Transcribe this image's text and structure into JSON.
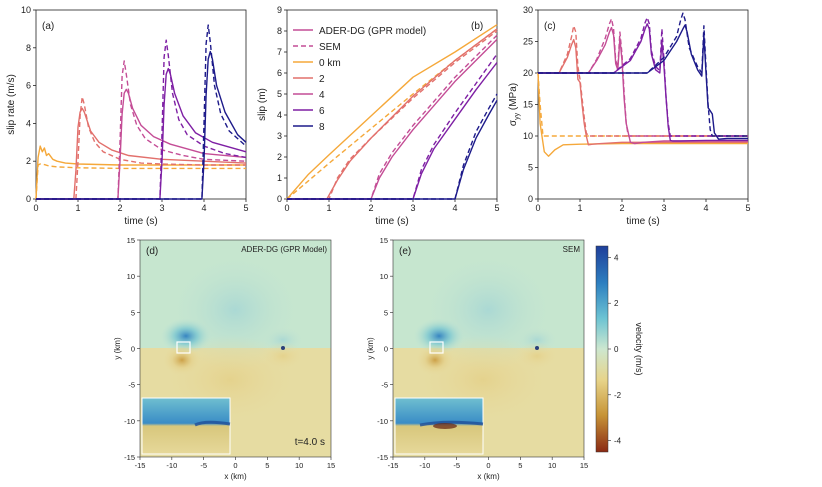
{
  "colors": {
    "0": "#f5a83a",
    "2": "#e2706c",
    "4": "#c44d96",
    "6": "#7e1fa4",
    "8": "#1d1a8a",
    "dg_pos": "#2d6fb3",
    "dg_neg": "#8b3a1c"
  },
  "chart_data": [
    {
      "id": "a",
      "type": "line",
      "panel_label": "(a)",
      "xlabel": "time (s)",
      "ylabel": "slip rate (m/s)",
      "xlim": [
        0,
        5
      ],
      "ylim": [
        0,
        10
      ],
      "xticks": [
        0,
        1,
        2,
        3,
        4,
        5
      ],
      "yticks": [
        0,
        2,
        4,
        6,
        8,
        10
      ],
      "series": [
        {
          "name": "0 km ADER-DG",
          "key": "0",
          "dash": false,
          "x": [
            0,
            0.05,
            0.1,
            0.15,
            0.2,
            0.25,
            0.3,
            0.4,
            0.5,
            0.7,
            1.0,
            2.0,
            3.0,
            4.0,
            5.0
          ],
          "y": [
            0,
            2.2,
            2.8,
            2.5,
            2.7,
            2.3,
            2.4,
            2.1,
            2.0,
            1.9,
            1.85,
            1.8,
            1.8,
            1.8,
            1.8
          ]
        },
        {
          "name": "0 km SEM",
          "key": "0",
          "dash": true,
          "x": [
            0,
            0.05,
            0.1,
            0.2,
            0.3,
            0.5,
            1.0,
            2.0,
            3.0,
            4.0,
            5.0
          ],
          "y": [
            0,
            1.8,
            1.85,
            1.82,
            1.75,
            1.7,
            1.65,
            1.62,
            1.62,
            1.62,
            1.62
          ]
        },
        {
          "name": "2 km ADER-DG",
          "key": "2",
          "dash": false,
          "x": [
            0,
            0.9,
            0.95,
            1.0,
            1.05,
            1.1,
            1.15,
            1.3,
            1.5,
            1.8,
            2.2,
            3.0,
            4.0,
            5.0
          ],
          "y": [
            0,
            0,
            1.5,
            3.8,
            4.6,
            4.8,
            4.6,
            3.6,
            3.0,
            2.6,
            2.3,
            2.1,
            2.0,
            1.9
          ]
        },
        {
          "name": "2 km SEM",
          "key": "2",
          "dash": true,
          "x": [
            0,
            0.95,
            1.0,
            1.05,
            1.1,
            1.15,
            1.25,
            1.4,
            1.6,
            2.0,
            2.5,
            3.0,
            4.0,
            5.0
          ],
          "y": [
            0,
            0,
            2.0,
            4.4,
            5.4,
            5.0,
            3.8,
            3.0,
            2.5,
            2.1,
            1.9,
            1.85,
            1.8,
            1.8
          ]
        },
        {
          "name": "4 km ADER-DG",
          "key": "4",
          "dash": false,
          "x": [
            0,
            1.95,
            2.0,
            2.05,
            2.1,
            2.15,
            2.2,
            2.3,
            2.5,
            2.8,
            3.2,
            4.0,
            5.0
          ],
          "y": [
            0,
            0,
            2.0,
            4.5,
            5.6,
            5.8,
            5.6,
            4.8,
            3.9,
            3.3,
            2.9,
            2.4,
            2.2
          ]
        },
        {
          "name": "4 km SEM",
          "key": "4",
          "dash": true,
          "x": [
            0,
            1.95,
            2.0,
            2.05,
            2.1,
            2.15,
            2.25,
            2.4,
            2.6,
            3.0,
            3.5,
            4.0,
            5.0
          ],
          "y": [
            0,
            0,
            3.0,
            6.5,
            7.3,
            6.6,
            5.0,
            3.9,
            3.2,
            2.6,
            2.3,
            2.1,
            2.0
          ]
        },
        {
          "name": "6 km ADER-DG",
          "key": "6",
          "dash": false,
          "x": [
            0,
            2.95,
            3.0,
            3.05,
            3.1,
            3.15,
            3.2,
            3.3,
            3.5,
            3.8,
            4.2,
            5.0
          ],
          "y": [
            0,
            0,
            2.0,
            5.0,
            6.6,
            6.9,
            6.6,
            5.6,
            4.4,
            3.5,
            3.0,
            2.5
          ]
        },
        {
          "name": "6 km SEM",
          "key": "6",
          "dash": true,
          "x": [
            0,
            2.95,
            3.0,
            3.05,
            3.1,
            3.15,
            3.25,
            3.4,
            3.6,
            4.0,
            4.5,
            5.0
          ],
          "y": [
            0,
            0,
            3.5,
            7.5,
            8.4,
            7.6,
            5.6,
            4.2,
            3.4,
            2.8,
            2.4,
            2.2
          ]
        },
        {
          "name": "8 km ADER-DG",
          "key": "8",
          "dash": false,
          "x": [
            0,
            3.95,
            4.0,
            4.05,
            4.1,
            4.15,
            4.2,
            4.3,
            4.5,
            4.8,
            5.0
          ],
          "y": [
            0,
            0,
            2.0,
            5.5,
            7.4,
            7.8,
            7.4,
            6.0,
            4.6,
            3.4,
            3.0
          ]
        },
        {
          "name": "8 km SEM",
          "key": "8",
          "dash": true,
          "x": [
            0,
            3.95,
            4.0,
            4.05,
            4.1,
            4.15,
            4.25,
            4.4,
            4.6,
            5.0
          ],
          "y": [
            0,
            0,
            4.0,
            8.2,
            9.2,
            8.3,
            6.0,
            4.5,
            3.6,
            2.8
          ]
        }
      ]
    },
    {
      "id": "b",
      "type": "line",
      "panel_label": "(b)",
      "xlabel": "time (s)",
      "ylabel": "slip (m)",
      "xlim": [
        0,
        5
      ],
      "ylim": [
        0,
        9
      ],
      "xticks": [
        0,
        1,
        2,
        3,
        4,
        5
      ],
      "yticks": [
        0,
        1,
        2,
        3,
        4,
        5,
        6,
        7,
        8,
        9
      ],
      "legend": [
        {
          "label": "ADER-DG (GPR model)",
          "key": "4",
          "dash": false
        },
        {
          "label": "SEM",
          "key": "4",
          "dash": true
        },
        {
          "label": "0 km",
          "key": "0",
          "dash": false
        },
        {
          "label": "2",
          "key": "2",
          "dash": false
        },
        {
          "label": "4",
          "key": "4",
          "dash": false
        },
        {
          "label": "6",
          "key": "6",
          "dash": false
        },
        {
          "label": "8",
          "key": "8",
          "dash": false
        }
      ],
      "series": [
        {
          "name": "0 km ADER-DG",
          "key": "0",
          "dash": false,
          "x": [
            0,
            0.5,
            1,
            2,
            3,
            4,
            5
          ],
          "y": [
            0,
            1.15,
            2.1,
            3.95,
            5.8,
            7.0,
            8.3
          ]
        },
        {
          "name": "0 km SEM",
          "key": "0",
          "dash": true,
          "x": [
            0,
            0.5,
            1,
            2,
            3,
            4,
            5
          ],
          "y": [
            0,
            0.85,
            1.7,
            3.35,
            5.0,
            6.6,
            8.1
          ]
        },
        {
          "name": "2 km ADER-DG",
          "key": "2",
          "dash": false,
          "x": [
            0,
            0.95,
            1.2,
            1.5,
            2,
            3,
            4,
            5
          ],
          "y": [
            0,
            0,
            0.9,
            1.8,
            2.9,
            4.9,
            6.6,
            8.1
          ]
        },
        {
          "name": "2 km SEM",
          "key": "2",
          "dash": true,
          "x": [
            0,
            1.0,
            1.2,
            1.5,
            2,
            3,
            4,
            5
          ],
          "y": [
            0,
            0,
            1.0,
            1.9,
            2.9,
            4.8,
            6.5,
            8.0
          ]
        },
        {
          "name": "4 km ADER-DG",
          "key": "4",
          "dash": false,
          "x": [
            0,
            2.0,
            2.2,
            2.5,
            3,
            4,
            5
          ],
          "y": [
            0,
            0,
            1.0,
            2.0,
            3.3,
            5.6,
            7.6
          ]
        },
        {
          "name": "4 km SEM",
          "key": "4",
          "dash": true,
          "x": [
            0,
            2.0,
            2.2,
            2.5,
            3,
            4,
            5
          ],
          "y": [
            0,
            0,
            1.2,
            2.2,
            3.5,
            5.8,
            7.8
          ]
        },
        {
          "name": "6 km ADER-DG",
          "key": "6",
          "dash": false,
          "x": [
            0,
            3.0,
            3.2,
            3.5,
            4,
            4.5,
            5
          ],
          "y": [
            0,
            0,
            1.2,
            2.4,
            3.8,
            5.2,
            6.5
          ]
        },
        {
          "name": "6 km SEM",
          "key": "6",
          "dash": true,
          "x": [
            0,
            3.0,
            3.2,
            3.5,
            4,
            4.5,
            5
          ],
          "y": [
            0,
            0,
            1.4,
            2.6,
            4.1,
            5.5,
            6.9
          ]
        },
        {
          "name": "8 km ADER-DG",
          "key": "8",
          "dash": false,
          "x": [
            0,
            4.0,
            4.2,
            4.5,
            4.8,
            5
          ],
          "y": [
            0,
            0,
            1.4,
            2.9,
            4.0,
            4.7
          ]
        },
        {
          "name": "8 km SEM",
          "key": "8",
          "dash": true,
          "x": [
            0,
            4.0,
            4.2,
            4.5,
            4.8,
            5
          ],
          "y": [
            0,
            0,
            1.6,
            3.2,
            4.3,
            5.0
          ]
        }
      ]
    },
    {
      "id": "c",
      "type": "line",
      "panel_label": "(c)",
      "xlabel": "time (s)",
      "ylabel": "σ",
      "ylabel_sub": "yy",
      "ylabel_unit": " (MPa)",
      "xlim": [
        0,
        5
      ],
      "ylim": [
        0,
        30
      ],
      "xticks": [
        0,
        1,
        2,
        3,
        4,
        5
      ],
      "yticks": [
        0,
        5,
        10,
        15,
        20,
        25,
        30
      ],
      "series": [
        {
          "name": "0 km ADER-DG",
          "key": "0",
          "dash": false,
          "x": [
            0,
            0.05,
            0.15,
            0.25,
            0.4,
            0.6,
            1.0,
            2.0,
            3.0,
            4.0,
            5.0
          ],
          "y": [
            20,
            12,
            7.5,
            6.8,
            7.8,
            8.6,
            8.7,
            8.8,
            8.8,
            8.8,
            8.8
          ]
        },
        {
          "name": "0 km SEM",
          "key": "0",
          "dash": true,
          "x": [
            0,
            0.05,
            0.12,
            5.0
          ],
          "y": [
            20,
            15,
            10,
            10
          ]
        },
        {
          "name": "2 km ADER-DG",
          "key": "2",
          "dash": false,
          "x": [
            0,
            0.5,
            0.7,
            0.8,
            0.85,
            0.9,
            0.95,
            1.0,
            1.05,
            1.1,
            1.15,
            1.2,
            1.3,
            1.5,
            2.0,
            3.0,
            5.0
          ],
          "y": [
            20,
            20,
            22.5,
            24.5,
            25.3,
            24.0,
            19.0,
            18.5,
            15.0,
            12.0,
            10.0,
            8.6,
            8.7,
            8.8,
            9.0,
            9.0,
            9.0
          ]
        },
        {
          "name": "2 km SEM",
          "key": "2",
          "dash": true,
          "x": [
            0,
            0.5,
            0.7,
            0.8,
            0.85,
            0.9,
            0.95,
            1.0,
            1.05,
            1.1,
            1.15,
            1.2,
            5.0
          ],
          "y": [
            20,
            20,
            23.0,
            25.8,
            27.5,
            26.5,
            21.0,
            19.0,
            16.0,
            13.0,
            10.5,
            10.0,
            10.0
          ]
        },
        {
          "name": "4 km ADER-DG",
          "key": "4",
          "dash": false,
          "x": [
            0,
            1.2,
            1.4,
            1.6,
            1.7,
            1.75,
            1.8,
            1.85,
            1.9,
            1.95,
            2.0,
            2.05,
            2.1,
            2.2,
            2.3,
            2.5,
            3.0,
            5.0
          ],
          "y": [
            20,
            20,
            22.0,
            24.5,
            26.5,
            27.2,
            26.0,
            21.5,
            20.5,
            25.5,
            22.0,
            16.0,
            12.0,
            9.0,
            8.8,
            9.0,
            9.2,
            9.2
          ]
        },
        {
          "name": "4 km SEM",
          "key": "4",
          "dash": true,
          "x": [
            0,
            1.2,
            1.4,
            1.6,
            1.7,
            1.75,
            1.8,
            1.85,
            1.9,
            1.95,
            2.0,
            2.05,
            2.1,
            2.15,
            5.0
          ],
          "y": [
            20,
            20,
            22.2,
            25.5,
            27.8,
            28.6,
            27.0,
            22.0,
            21.0,
            26.5,
            23.0,
            17.0,
            12.0,
            10.0,
            10.0
          ]
        },
        {
          "name": "6 km ADER-DG",
          "key": "6",
          "dash": false,
          "x": [
            0,
            1.8,
            2.2,
            2.45,
            2.55,
            2.6,
            2.65,
            2.7,
            2.8,
            2.9,
            2.95,
            3.0,
            3.05,
            3.1,
            3.15,
            3.2,
            3.4,
            4.0,
            5.0
          ],
          "y": [
            20,
            20,
            22.0,
            25.0,
            27.0,
            27.8,
            27.0,
            23.0,
            20.5,
            20.0,
            25.0,
            21.0,
            16.0,
            11.5,
            9.3,
            9.2,
            9.2,
            9.3,
            9.3
          ]
        },
        {
          "name": "6 km SEM",
          "key": "6",
          "dash": true,
          "x": [
            0,
            1.8,
            2.2,
            2.45,
            2.55,
            2.6,
            2.65,
            2.7,
            2.8,
            2.9,
            2.95,
            3.0,
            3.05,
            3.1,
            3.15,
            5.0
          ],
          "y": [
            20,
            20,
            22.3,
            25.5,
            28.0,
            28.8,
            27.8,
            23.5,
            21.0,
            20.4,
            27.0,
            22.0,
            16.0,
            12.0,
            10.0,
            10.0
          ]
        },
        {
          "name": "8 km ADER-DG",
          "key": "8",
          "dash": false,
          "x": [
            0,
            2.6,
            3.0,
            3.3,
            3.45,
            3.5,
            3.55,
            3.65,
            3.8,
            3.9,
            3.95,
            4.0,
            4.05,
            4.1,
            4.15,
            4.2,
            4.3,
            4.5,
            5.0
          ],
          "y": [
            20,
            20,
            22.0,
            25.0,
            27.0,
            27.6,
            26.5,
            23.0,
            20.5,
            19.5,
            26.0,
            20.0,
            14.5,
            14.0,
            13.5,
            10.5,
            9.5,
            9.6,
            9.6
          ]
        },
        {
          "name": "8 km SEM",
          "key": "8",
          "dash": true,
          "x": [
            0,
            2.6,
            3.0,
            3.3,
            3.4,
            3.45,
            3.5,
            3.6,
            3.8,
            3.9,
            3.95,
            4.0,
            4.05,
            4.1,
            4.15,
            4.2,
            5.0
          ],
          "y": [
            20,
            20,
            22.5,
            25.8,
            28.5,
            29.5,
            28.5,
            24.0,
            21.0,
            20.0,
            27.5,
            21.0,
            15.0,
            11.0,
            10.0,
            10.0,
            10.0
          ]
        }
      ]
    },
    {
      "id": "d",
      "type": "heatmap",
      "panel_label": "(d)",
      "title": "ADER-DG (GPR Model)",
      "annotation": "t=4.0 s",
      "xlabel": "x (km)",
      "ylabel": "y (km)",
      "xlim": [
        -15,
        15
      ],
      "ylim": [
        -15,
        15
      ],
      "xticks": [
        -15,
        -10,
        -5,
        0,
        5,
        10,
        15
      ],
      "yticks": [
        -15,
        -10,
        -5,
        0,
        5,
        10,
        15
      ],
      "rupture_front_km": [
        -8,
        8
      ]
    },
    {
      "id": "e",
      "type": "heatmap",
      "panel_label": "(e)",
      "title": "SEM",
      "xlabel": "x (km)",
      "ylabel": "y (km)",
      "xlim": [
        -15,
        15
      ],
      "ylim": [
        -15,
        15
      ],
      "xticks": [
        -15,
        -10,
        -5,
        0,
        5,
        10,
        15
      ],
      "yticks": [
        -15,
        -10,
        -5,
        0,
        5,
        10,
        15
      ],
      "rupture_front_km": [
        -8,
        8
      ]
    }
  ],
  "colorbar": {
    "label": "velocity (m/s)",
    "range": [
      -4.5,
      4.5
    ],
    "ticks": [
      4,
      2,
      0,
      -2,
      -4
    ]
  }
}
